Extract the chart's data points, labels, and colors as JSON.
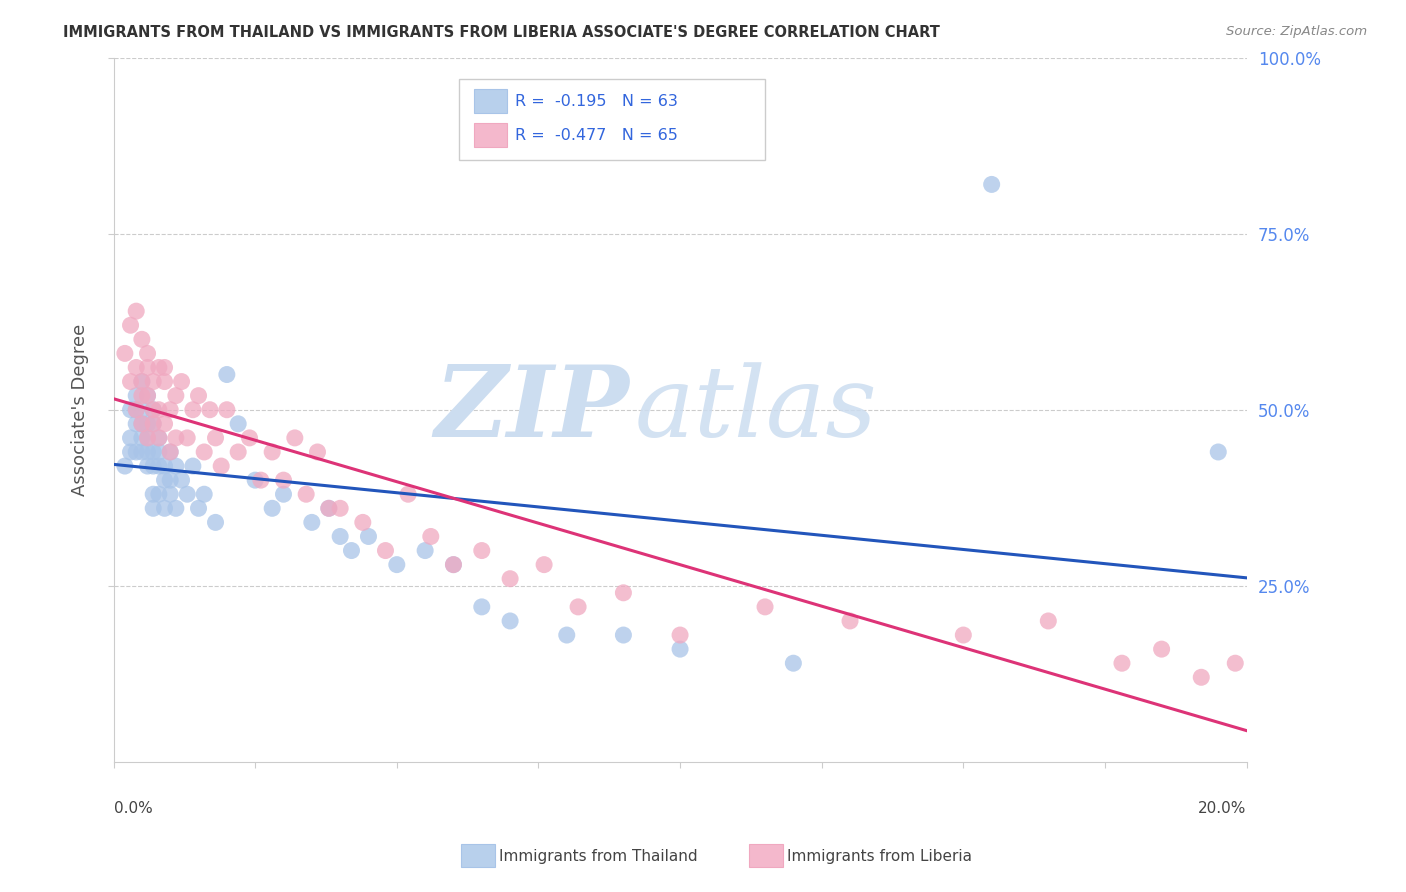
{
  "title": "IMMIGRANTS FROM THAILAND VS IMMIGRANTS FROM LIBERIA ASSOCIATE'S DEGREE CORRELATION CHART",
  "source": "Source: ZipAtlas.com",
  "ylabel": "Associate's Degree",
  "right_ytick_vals": [
    0.25,
    0.5,
    0.75,
    1.0
  ],
  "right_ytick_labels": [
    "25.0%",
    "50.0%",
    "75.0%",
    "100.0%"
  ],
  "xlim": [
    0.0,
    0.2
  ],
  "ylim": [
    0.0,
    1.0
  ],
  "thailand_R": -0.195,
  "thailand_N": 63,
  "liberia_R": -0.477,
  "liberia_N": 65,
  "thailand_color": "#a8c4e8",
  "liberia_color": "#f0a8c0",
  "thailand_line_color": "#2255bb",
  "liberia_line_color": "#dd3377",
  "legend_text_color": "#3366dd",
  "background_color": "#ffffff",
  "grid_color": "#cccccc",
  "watermark_zip_color": "#d8e8f8",
  "watermark_atlas_color": "#c8daf0",
  "thailand_x": [
    0.002,
    0.003,
    0.003,
    0.003,
    0.004,
    0.004,
    0.004,
    0.004,
    0.005,
    0.005,
    0.005,
    0.005,
    0.005,
    0.006,
    0.006,
    0.006,
    0.006,
    0.006,
    0.007,
    0.007,
    0.007,
    0.007,
    0.007,
    0.007,
    0.008,
    0.008,
    0.008,
    0.008,
    0.009,
    0.009,
    0.009,
    0.01,
    0.01,
    0.01,
    0.011,
    0.011,
    0.012,
    0.013,
    0.014,
    0.015,
    0.016,
    0.018,
    0.02,
    0.022,
    0.025,
    0.028,
    0.03,
    0.035,
    0.038,
    0.04,
    0.042,
    0.045,
    0.05,
    0.055,
    0.06,
    0.065,
    0.07,
    0.08,
    0.09,
    0.1,
    0.12,
    0.155,
    0.195
  ],
  "thailand_y": [
    0.42,
    0.5,
    0.46,
    0.44,
    0.52,
    0.48,
    0.44,
    0.5,
    0.54,
    0.48,
    0.46,
    0.5,
    0.44,
    0.52,
    0.46,
    0.42,
    0.48,
    0.44,
    0.5,
    0.44,
    0.48,
    0.42,
    0.36,
    0.38,
    0.46,
    0.42,
    0.38,
    0.44,
    0.4,
    0.36,
    0.42,
    0.44,
    0.38,
    0.4,
    0.42,
    0.36,
    0.4,
    0.38,
    0.42,
    0.36,
    0.38,
    0.34,
    0.55,
    0.48,
    0.4,
    0.36,
    0.38,
    0.34,
    0.36,
    0.32,
    0.3,
    0.32,
    0.28,
    0.3,
    0.28,
    0.22,
    0.2,
    0.18,
    0.18,
    0.16,
    0.14,
    0.82,
    0.44
  ],
  "liberia_x": [
    0.002,
    0.003,
    0.003,
    0.004,
    0.004,
    0.004,
    0.005,
    0.005,
    0.005,
    0.005,
    0.006,
    0.006,
    0.006,
    0.006,
    0.007,
    0.007,
    0.007,
    0.008,
    0.008,
    0.008,
    0.009,
    0.009,
    0.009,
    0.01,
    0.01,
    0.011,
    0.011,
    0.012,
    0.013,
    0.014,
    0.015,
    0.016,
    0.017,
    0.018,
    0.019,
    0.02,
    0.022,
    0.024,
    0.026,
    0.028,
    0.03,
    0.032,
    0.034,
    0.036,
    0.038,
    0.04,
    0.044,
    0.048,
    0.052,
    0.056,
    0.06,
    0.065,
    0.07,
    0.076,
    0.082,
    0.09,
    0.1,
    0.115,
    0.13,
    0.15,
    0.165,
    0.178,
    0.185,
    0.192,
    0.198
  ],
  "liberia_y": [
    0.58,
    0.62,
    0.54,
    0.64,
    0.56,
    0.5,
    0.6,
    0.54,
    0.48,
    0.52,
    0.58,
    0.52,
    0.56,
    0.46,
    0.54,
    0.48,
    0.5,
    0.56,
    0.5,
    0.46,
    0.54,
    0.48,
    0.56,
    0.5,
    0.44,
    0.52,
    0.46,
    0.54,
    0.46,
    0.5,
    0.52,
    0.44,
    0.5,
    0.46,
    0.42,
    0.5,
    0.44,
    0.46,
    0.4,
    0.44,
    0.4,
    0.46,
    0.38,
    0.44,
    0.36,
    0.36,
    0.34,
    0.3,
    0.38,
    0.32,
    0.28,
    0.3,
    0.26,
    0.28,
    0.22,
    0.24,
    0.18,
    0.22,
    0.2,
    0.18,
    0.2,
    0.14,
    0.16,
    0.12,
    0.14
  ]
}
